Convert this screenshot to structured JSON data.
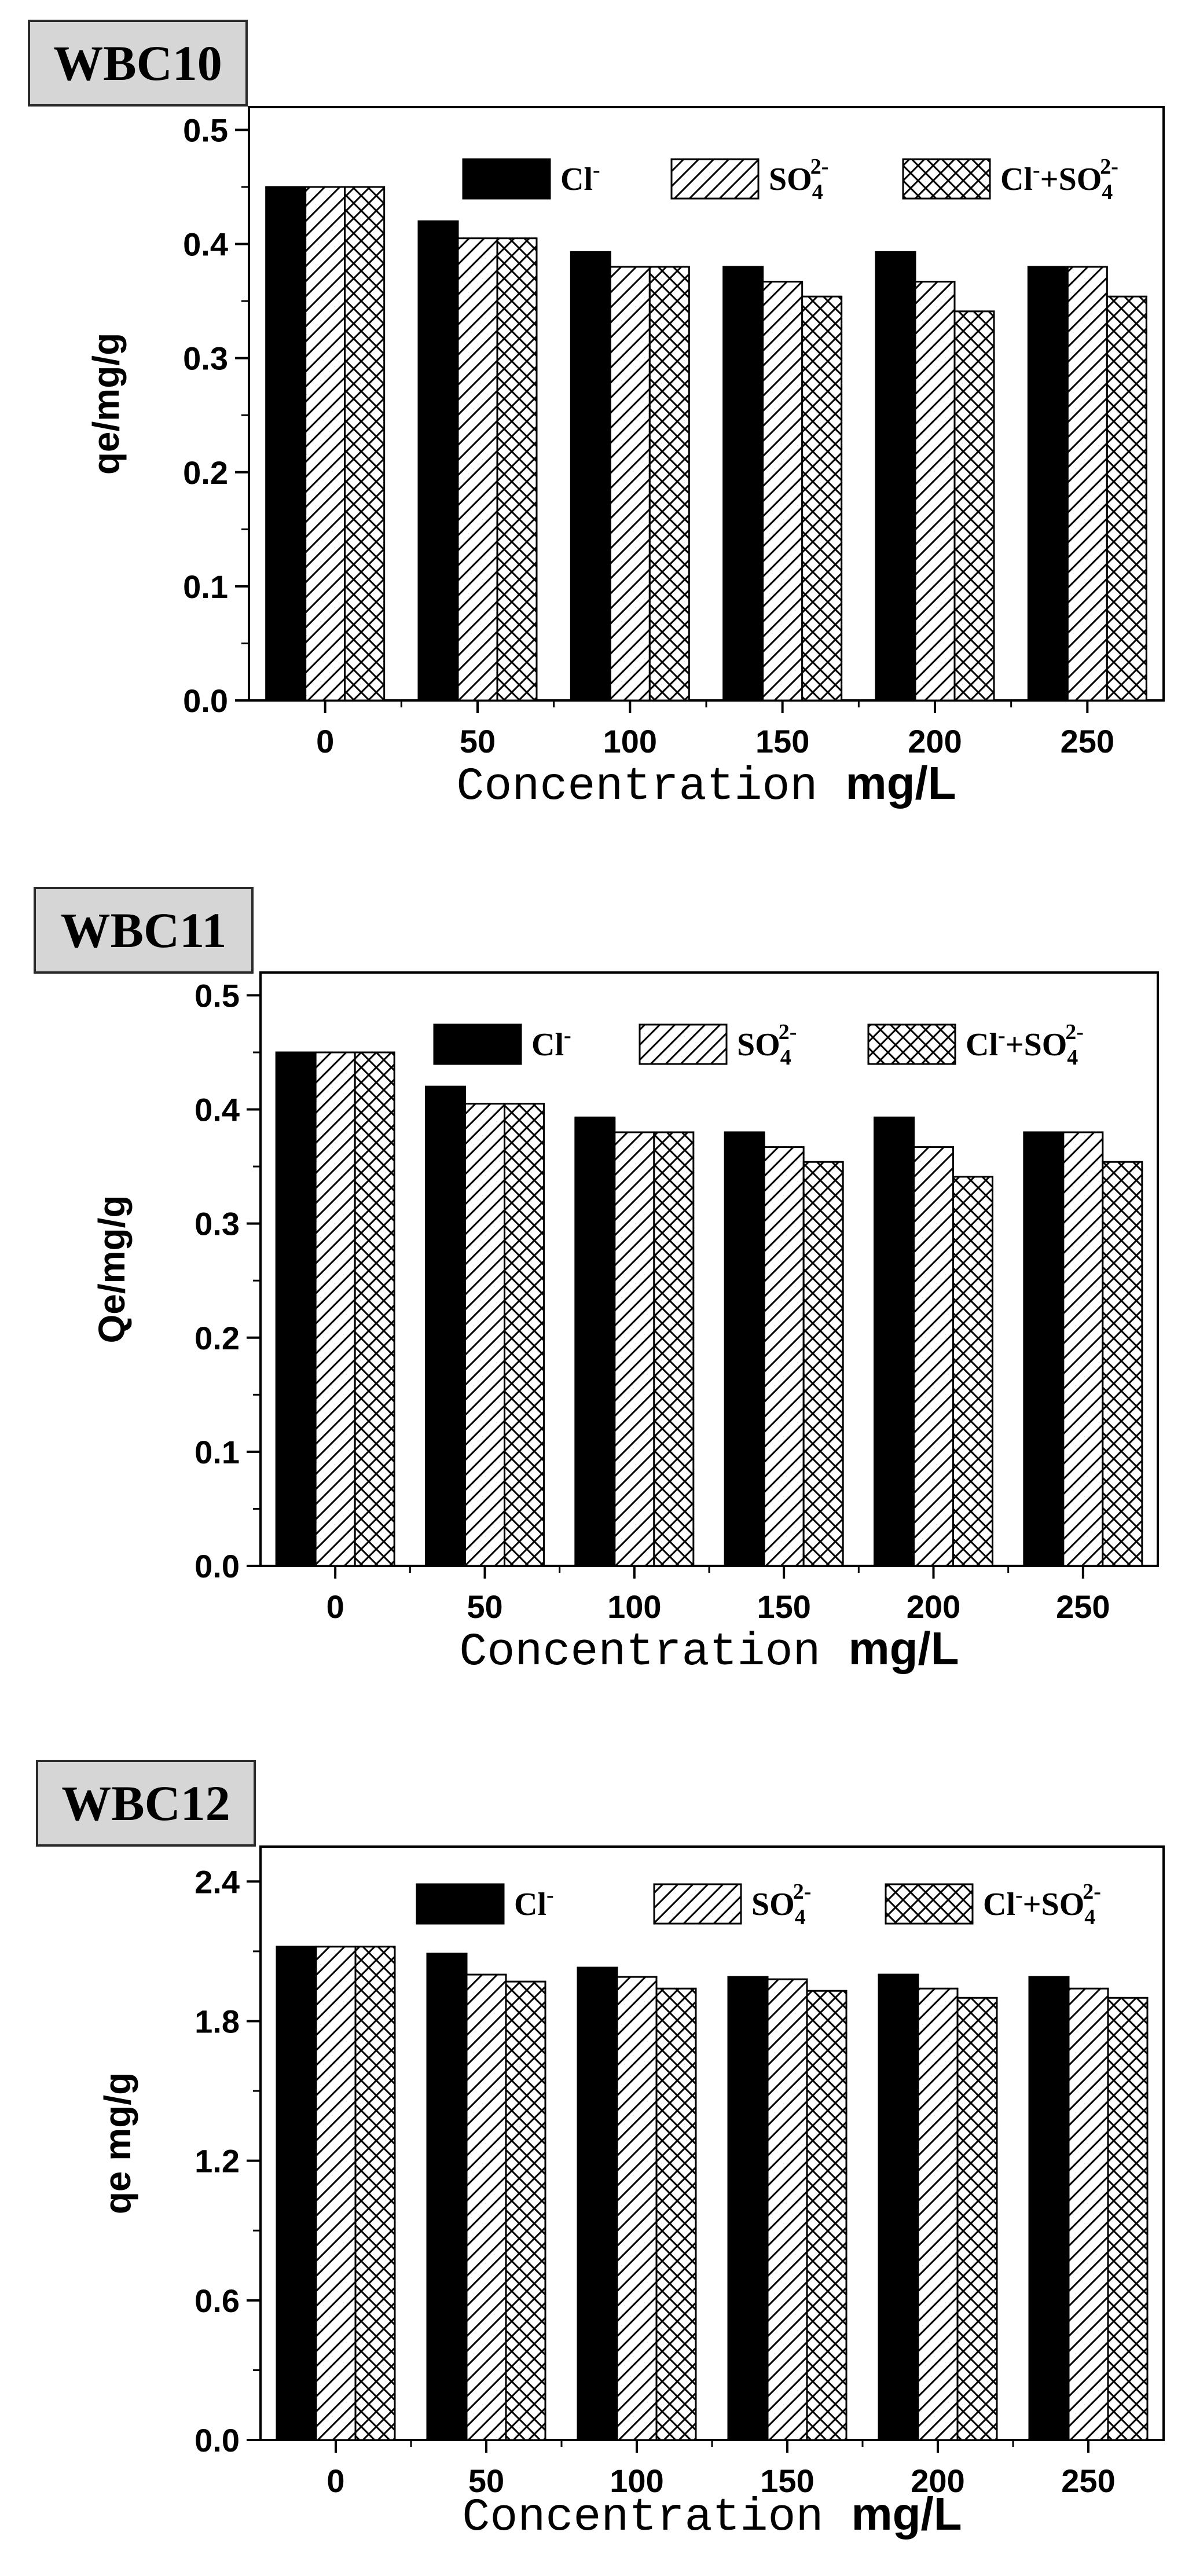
{
  "chart_data": [
    {
      "type": "bar",
      "title": "WBC10",
      "xlabel_plain": "Concentration",
      "xlabel_bold": "mg/L",
      "ylabel": "qe/mg/g",
      "categories": [
        "0",
        "50",
        "100",
        "150",
        "200",
        "250"
      ],
      "yticks": [
        "0.0",
        "0.1",
        "0.2",
        "0.3",
        "0.4",
        "0.5"
      ],
      "ylim": [
        0,
        0.52
      ],
      "legend_position": "top-right",
      "series": [
        {
          "name": "Cl-",
          "legend_main": "Cl",
          "legend_sup": "-",
          "pattern": "solid",
          "values": [
            0.45,
            0.42,
            0.393,
            0.38,
            0.393,
            0.38
          ]
        },
        {
          "name": "SO4 2-",
          "legend_main": "SO",
          "legend_sub": "4",
          "legend_sup": "2-",
          "pattern": "hatch",
          "values": [
            0.45,
            0.405,
            0.38,
            0.367,
            0.367,
            0.38
          ]
        },
        {
          "name": "Cl- + SO4 2-",
          "legend_pre": "Cl",
          "legend_pre_sup": "-",
          "legend_main": "+SO",
          "legend_sub": "4",
          "legend_sup": "2-",
          "pattern": "cross",
          "values": [
            0.45,
            0.405,
            0.38,
            0.354,
            0.341,
            0.354
          ]
        }
      ]
    },
    {
      "type": "bar",
      "title": "WBC11",
      "xlabel_plain": "Concentration",
      "xlabel_bold": "mg/L",
      "ylabel": "Qe/mg/g",
      "categories": [
        "0",
        "50",
        "100",
        "150",
        "200",
        "250"
      ],
      "yticks": [
        "0.0",
        "0.1",
        "0.2",
        "0.3",
        "0.4",
        "0.5"
      ],
      "ylim": [
        0,
        0.52
      ],
      "legend_position": "top-right",
      "series": [
        {
          "name": "Cl-",
          "legend_main": "Cl",
          "legend_sup": "-",
          "pattern": "solid",
          "values": [
            0.45,
            0.42,
            0.393,
            0.38,
            0.393,
            0.38
          ]
        },
        {
          "name": "SO4 2-",
          "legend_main": "SO",
          "legend_sub": "4",
          "legend_sup": "2-",
          "pattern": "hatch",
          "values": [
            0.45,
            0.405,
            0.38,
            0.367,
            0.367,
            0.38
          ]
        },
        {
          "name": "Cl- + SO4 2-",
          "legend_pre": "Cl",
          "legend_pre_sup": "-",
          "legend_main": "+SO",
          "legend_sub": "4",
          "legend_sup": "2-",
          "pattern": "cross",
          "values": [
            0.45,
            0.405,
            0.38,
            0.354,
            0.341,
            0.354
          ]
        }
      ]
    },
    {
      "type": "bar",
      "title": "WBC12",
      "xlabel_plain": "Concentration",
      "xlabel_bold": "mg/L",
      "ylabel": "qe  mg/g",
      "categories": [
        "0",
        "50",
        "100",
        "150",
        "200",
        "250"
      ],
      "yticks": [
        "0.0",
        "0.6",
        "1.2",
        "1.8",
        "2.4"
      ],
      "ylim": [
        0,
        2.55
      ],
      "legend_position": "top-right",
      "series": [
        {
          "name": "Cl-",
          "legend_main": "Cl",
          "legend_sup": "-",
          "pattern": "solid",
          "values": [
            2.12,
            2.09,
            2.03,
            1.99,
            2.0,
            1.99
          ]
        },
        {
          "name": "SO4 2-",
          "legend_main": "SO",
          "legend_sub": "4",
          "legend_sup": "2-",
          "pattern": "hatch",
          "values": [
            2.12,
            2.0,
            1.99,
            1.98,
            1.94,
            1.94
          ]
        },
        {
          "name": "Cl- + SO4 2-",
          "legend_pre": "Cl",
          "legend_pre_sup": "-",
          "legend_main": "+SO",
          "legend_sub": "4",
          "legend_sup": "2-",
          "pattern": "cross",
          "values": [
            2.12,
            1.97,
            1.94,
            1.93,
            1.9,
            1.9
          ]
        }
      ]
    }
  ]
}
